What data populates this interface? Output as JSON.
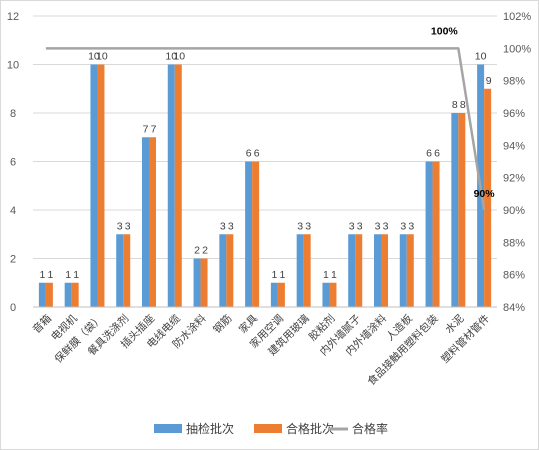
{
  "chart_data": {
    "type": "bar",
    "categories": [
      "音箱",
      "电视机",
      "保鲜膜（袋）",
      "餐具洗涤剂",
      "插头插座",
      "电线电缆",
      "防水涂料",
      "钢筋",
      "家具",
      "家用空调",
      "建筑用玻璃",
      "胶粘剂",
      "内外墙腻子",
      "内外墙涂料",
      "人造板",
      "食品接触用塑料包装",
      "水泥",
      "塑料管材管件"
    ],
    "series": [
      {
        "name": "抽检批次",
        "type": "bar",
        "axis": "left",
        "color": "#5B9BD5",
        "values": [
          1,
          1,
          10,
          3,
          7,
          10,
          2,
          3,
          6,
          1,
          3,
          1,
          3,
          3,
          3,
          6,
          8,
          10
        ]
      },
      {
        "name": "合格批次",
        "type": "bar",
        "axis": "left",
        "color": "#ED7D31",
        "values": [
          1,
          1,
          10,
          3,
          7,
          10,
          2,
          3,
          6,
          1,
          3,
          1,
          3,
          3,
          3,
          6,
          8,
          9
        ]
      },
      {
        "name": "合格率",
        "type": "line",
        "axis": "right",
        "color": "#A5A5A5",
        "values": [
          100,
          100,
          100,
          100,
          100,
          100,
          100,
          100,
          100,
          100,
          100,
          100,
          100,
          100,
          100,
          100,
          100,
          90
        ]
      }
    ],
    "y_left": {
      "min": 0,
      "max": 12,
      "step": 2,
      "ticks": [
        "0",
        "2",
        "4",
        "6",
        "8",
        "10",
        "12"
      ]
    },
    "y_right": {
      "min": 84,
      "max": 102,
      "step": 2,
      "ticks": [
        "84%",
        "86%",
        "88%",
        "90%",
        "92%",
        "94%",
        "96%",
        "98%",
        "100%",
        "102%"
      ]
    },
    "line_labels": [
      {
        "index": 16,
        "text": "100%"
      },
      {
        "index": 17,
        "text": "90%"
      }
    ],
    "grid": true,
    "legend_position": "bottom",
    "title": "",
    "xlabel": "",
    "ylabel": ""
  }
}
